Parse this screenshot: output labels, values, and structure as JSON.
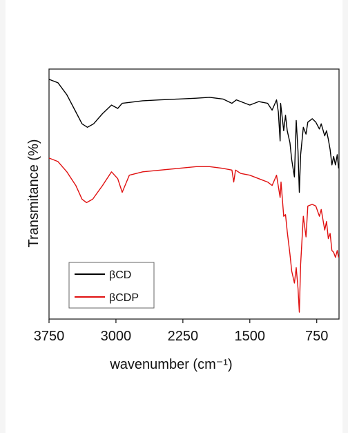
{
  "chart_data": {
    "type": "line",
    "xlabel": "wavenumber (cm⁻¹)",
    "ylabel": "Transmitance (%)",
    "xlim": [
      3750,
      500
    ],
    "x_ticks": [
      "3750",
      "3000",
      "2250",
      "1500",
      "750"
    ],
    "x_tick_values": [
      3750,
      3000,
      2250,
      1500,
      750
    ],
    "y_ticks": [],
    "legend_position": "bottom-left",
    "series": [
      {
        "name": "βCD",
        "color": "#000000",
        "x": [
          3750,
          3650,
          3550,
          3450,
          3380,
          3320,
          3250,
          3150,
          3050,
          2980,
          2930,
          2850,
          2700,
          2500,
          2300,
          2100,
          1950,
          1800,
          1700,
          1650,
          1600,
          1500,
          1400,
          1300,
          1250,
          1200,
          1180,
          1160,
          1155,
          1120,
          1100,
          1080,
          1050,
          1030,
          1000,
          980,
          960,
          945,
          930,
          900,
          870,
          850,
          800,
          760,
          720,
          700,
          660,
          640,
          620,
          600,
          580,
          560,
          540,
          520,
          505
        ],
        "values": [
          74,
          72,
          65,
          55,
          48,
          46,
          48,
          54,
          59,
          57,
          60,
          60.5,
          61.5,
          62,
          62.5,
          63,
          63.5,
          62.5,
          60,
          62,
          61,
          59,
          61,
          60,
          56,
          62,
          55,
          38,
          60,
          44,
          53,
          44,
          37,
          27,
          17,
          50,
          32,
          8,
          30,
          46,
          42,
          49,
          51,
          49,
          45,
          48,
          41,
          44,
          39,
          33,
          24,
          29,
          24,
          30,
          22
        ]
      },
      {
        "name": "βCDP",
        "color": "#e01010",
        "x": [
          3750,
          3650,
          3550,
          3450,
          3380,
          3330,
          3260,
          3150,
          3050,
          2980,
          2930,
          2850,
          2700,
          2500,
          2300,
          2100,
          1950,
          1800,
          1700,
          1680,
          1660,
          1600,
          1500,
          1400,
          1300,
          1250,
          1200,
          1160,
          1150,
          1120,
          1100,
          1080,
          1050,
          1030,
          1000,
          980,
          960,
          945,
          930,
          900,
          870,
          850,
          800,
          760,
          720,
          700,
          660,
          640,
          620,
          600,
          580,
          560,
          540,
          520,
          505
        ],
        "values": [
          28,
          26,
          20,
          12,
          4,
          2,
          4,
          12,
          20,
          16,
          8,
          18,
          20,
          21,
          22,
          23,
          23,
          22,
          21,
          14,
          21,
          19,
          18,
          16,
          14,
          12,
          18,
          5,
          14,
          -6,
          -5,
          -15,
          -28,
          -38,
          -45,
          -36,
          -48,
          -62,
          -34,
          -6,
          -18,
          0,
          1,
          0,
          -6,
          -2,
          -14,
          -9,
          -19,
          -16,
          -26,
          -27,
          -30,
          -26,
          -30
        ]
      }
    ]
  }
}
